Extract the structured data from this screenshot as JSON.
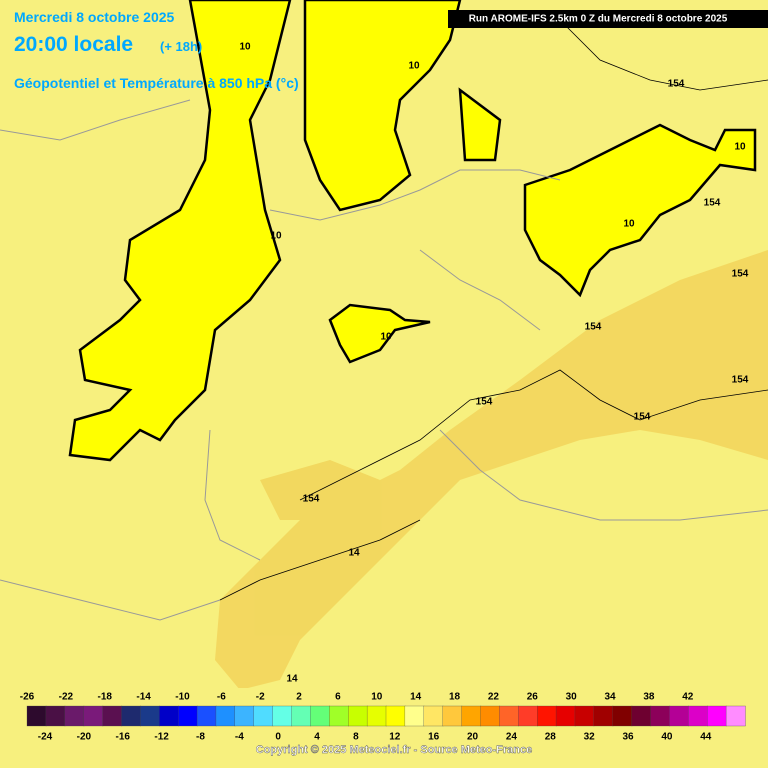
{
  "header": {
    "date": "Mercredi 8 octobre 2025",
    "time": "20:00 locale",
    "lead": "(+ 18h)",
    "field": "Géopotentiel et Température à 850 hPa (°c)",
    "run": "Run AROME-IFS 2.5km 0 Z du Mercredi 8 octobre 2025"
  },
  "contour_labels": [
    "10",
    "10",
    "10",
    "10",
    "10",
    "10",
    "154",
    "154",
    "154",
    "154",
    "154",
    "154",
    "154",
    "154",
    "14",
    "14"
  ],
  "legend": {
    "top_labels": [
      "-26",
      "-22",
      "-18",
      "-14",
      "-10",
      "-6",
      "-2",
      "2",
      "6",
      "10",
      "14",
      "18",
      "22",
      "26",
      "30",
      "34",
      "38",
      "42"
    ],
    "bottom_labels": [
      "-24",
      "-20",
      "-16",
      "-12",
      "-8",
      "-4",
      "0",
      "4",
      "8",
      "12",
      "16",
      "20",
      "24",
      "28",
      "32",
      "36",
      "40",
      "44"
    ],
    "colors": [
      "#2d0a2d",
      "#4a1045",
      "#6a1a6a",
      "#7a1a7a",
      "#5a1050",
      "#1e2a6e",
      "#1a3a8a",
      "#0000c8",
      "#0000ff",
      "#1a50ff",
      "#1e90ff",
      "#3cb4ff",
      "#50dcff",
      "#64ffe6",
      "#64ffb4",
      "#64ff78",
      "#a0ff28",
      "#c8ff00",
      "#e6ff00",
      "#ffff00",
      "#ffff8c",
      "#ffe664",
      "#ffc83c",
      "#ffa500",
      "#ff8c00",
      "#ff6428",
      "#ff3c28",
      "#ff1400",
      "#e60000",
      "#c80000",
      "#a00000",
      "#800000",
      "#6e0030",
      "#8c005a",
      "#b40096",
      "#dc00c8",
      "#ff00ff",
      "#ff8cff"
    ]
  },
  "copyright": "Copyright © 2025 Meteociel.fr - Source Meteo-France"
}
